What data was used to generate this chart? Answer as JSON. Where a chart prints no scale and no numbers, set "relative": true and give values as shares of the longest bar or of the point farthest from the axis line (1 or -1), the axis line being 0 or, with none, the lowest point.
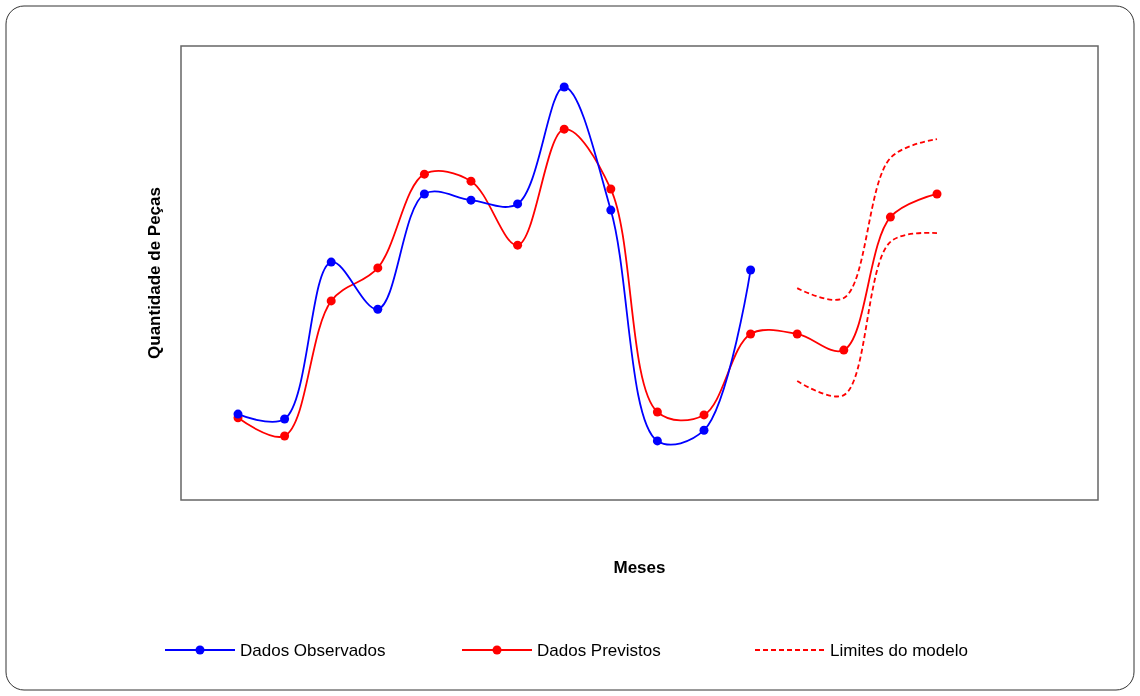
{
  "chart_data": {
    "type": "line",
    "relative": true,
    "xlabel": "Meses",
    "ylabel": "Quantidade de Peças",
    "legend": "bottom",
    "categories": [
      null,
      null,
      null,
      null,
      null,
      null,
      null,
      null,
      null,
      null,
      null,
      null,
      null,
      null,
      null,
      null
    ],
    "series": [
      {
        "name": "Dados Observados",
        "color": "#0000ff",
        "marker": "circle",
        "line_style": "solid",
        "values": [
          0.208,
          0.196,
          0.576,
          0.462,
          0.741,
          0.726,
          0.717,
          1,
          0.702,
          0.143,
          0.169,
          0.557,
          null,
          null,
          null,
          null
        ]
      },
      {
        "name": "Dados Previstos",
        "color": "#ff0000",
        "marker": "circle",
        "line_style": "solid",
        "values": [
          0.199,
          0.155,
          0.482,
          0.562,
          0.789,
          0.772,
          0.617,
          0.898,
          0.753,
          0.213,
          0.206,
          0.402,
          0.402,
          0.363,
          0.685,
          0.741
        ]
      },
      {
        "name": "Limites do modelo",
        "color": "#ff0000",
        "marker": "none",
        "line_style": "dashed",
        "values": [
          null,
          null,
          null,
          null,
          null,
          null,
          null,
          null,
          null,
          null,
          null,
          null,
          0.513,
          0.489,
          0.828,
          0.874
        ]
      },
      {
        "color": "#ff0000",
        "marker": "none",
        "line_style": "dashed",
        "values": [
          null,
          null,
          null,
          null,
          null,
          null,
          null,
          null,
          null,
          null,
          null,
          null,
          0.288,
          0.254,
          0.625,
          0.646
        ]
      }
    ]
  }
}
